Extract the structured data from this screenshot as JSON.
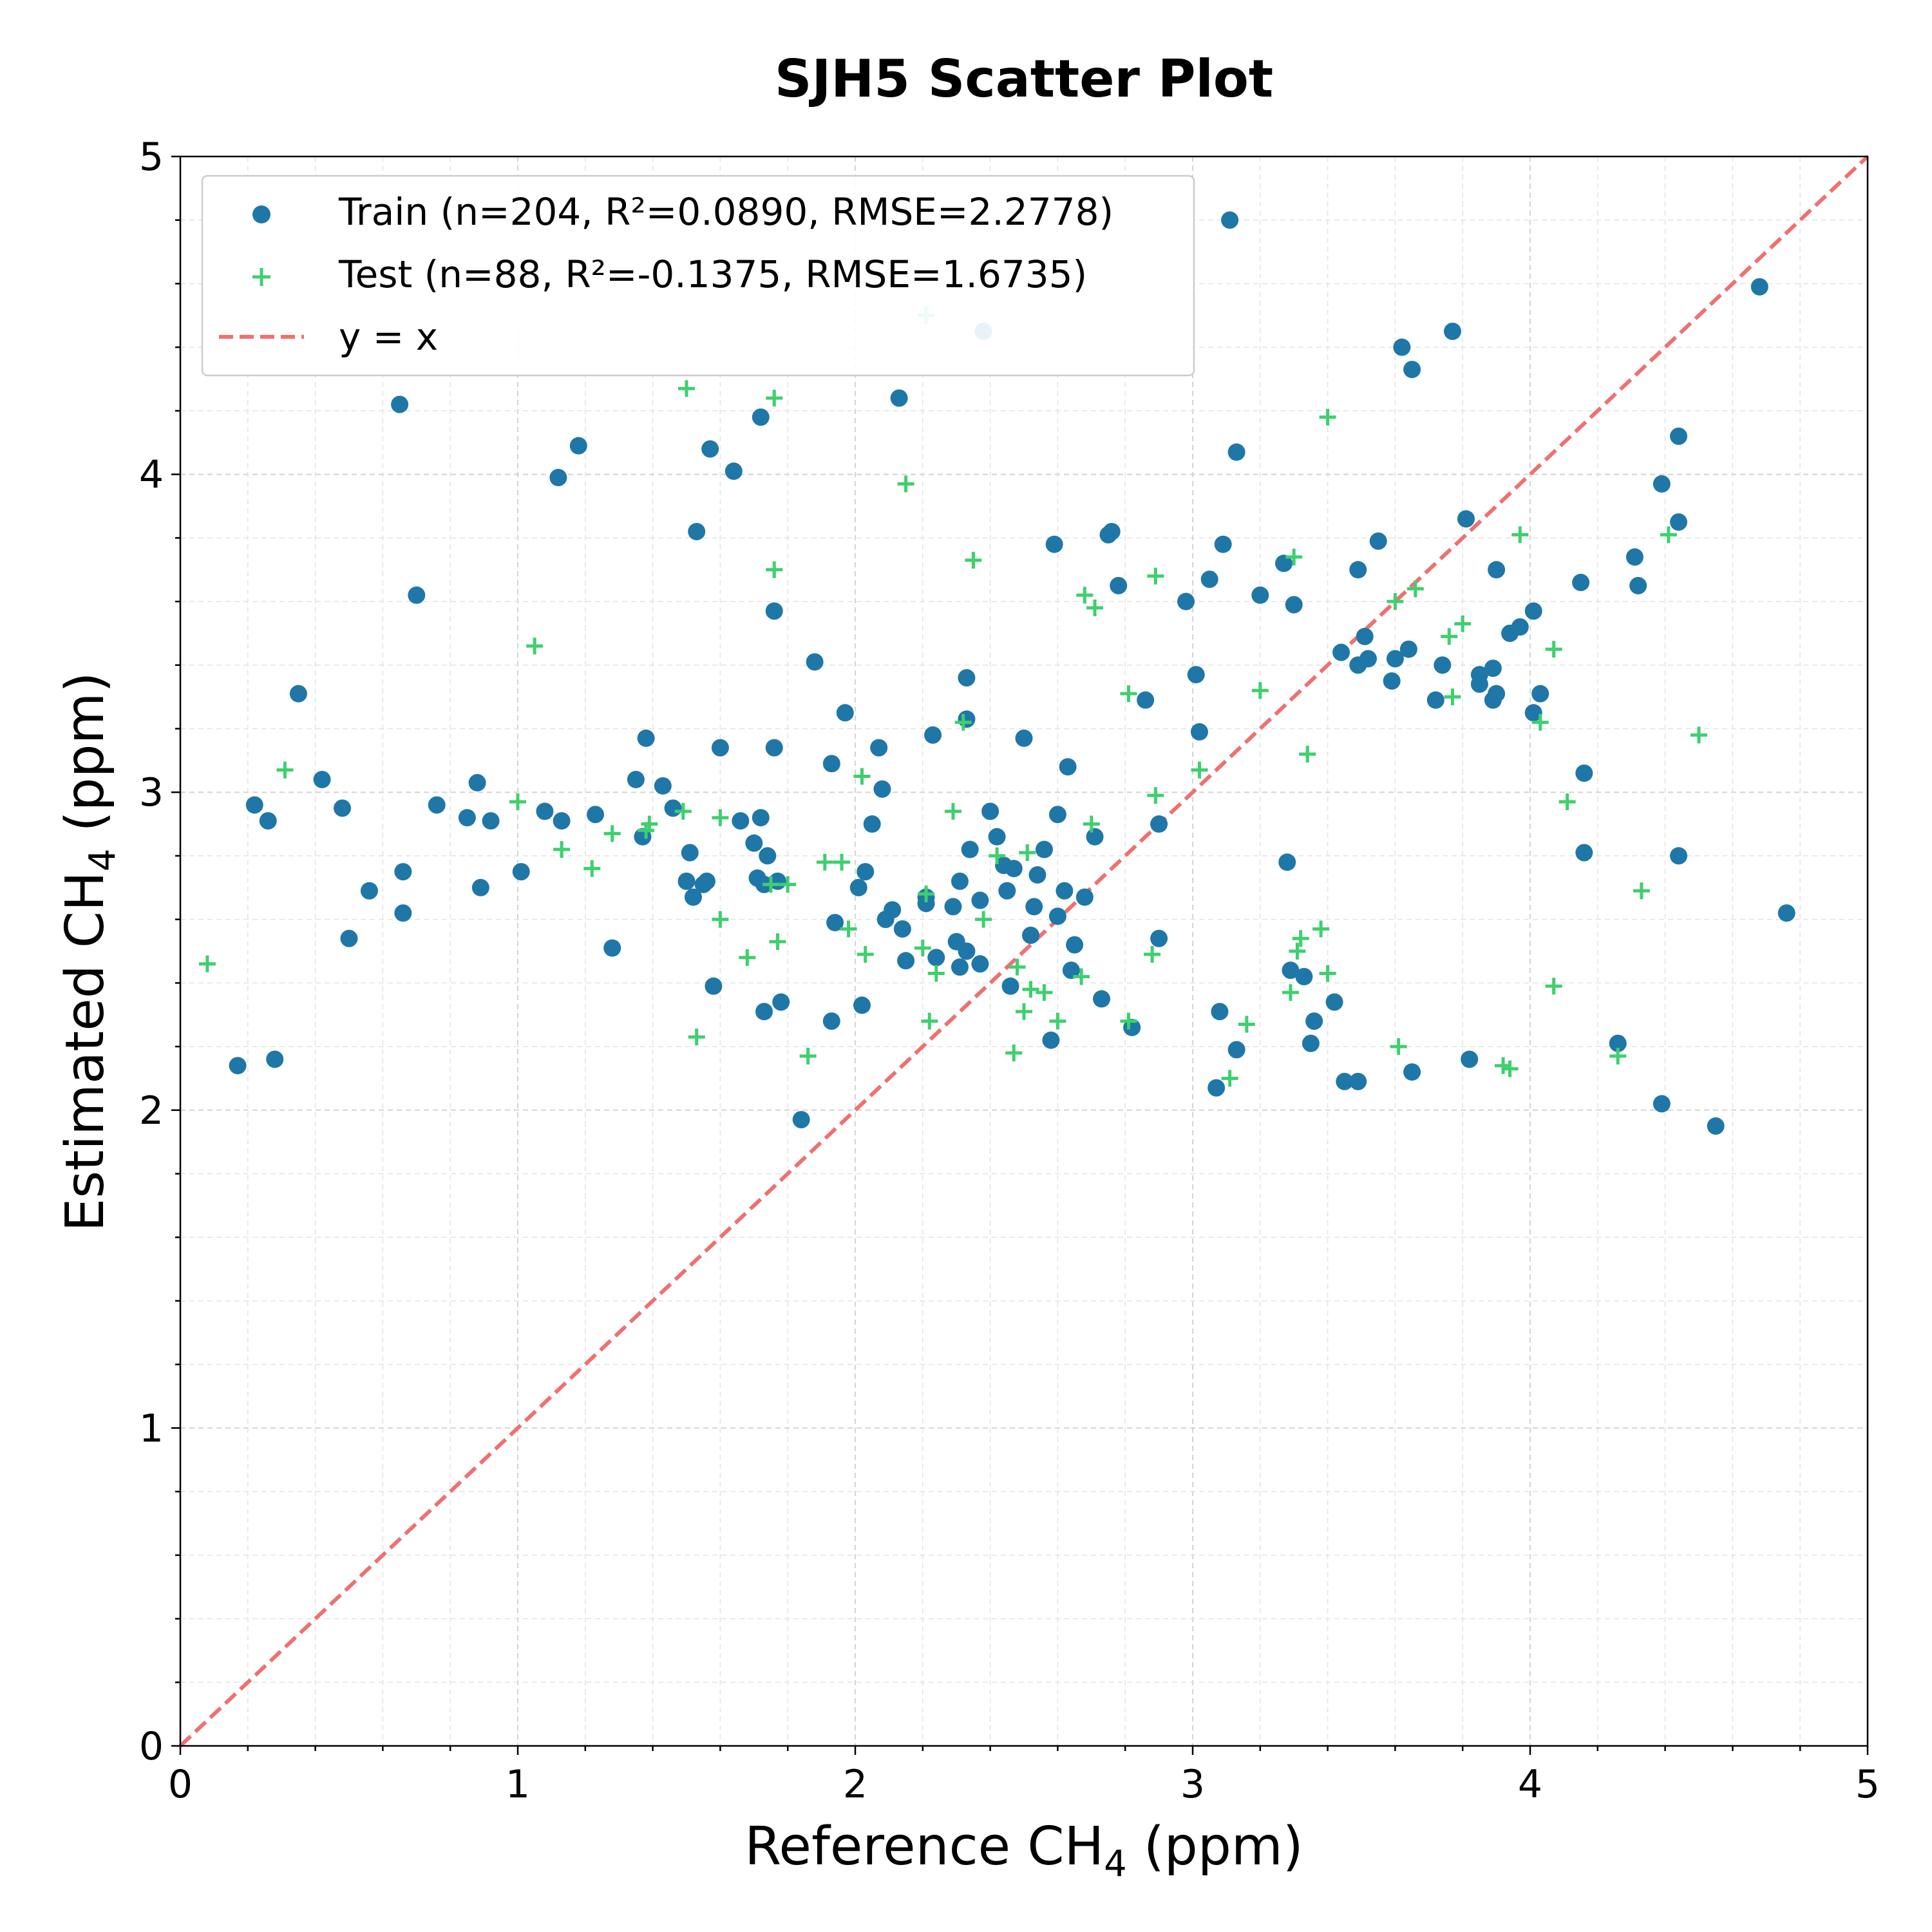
{
  "chart_data": {
    "type": "scatter",
    "title": "SJH5 Scatter Plot",
    "xlabel_main": "Reference CH",
    "xlabel_sub": "4",
    "xlabel_unit": " (ppm)",
    "ylabel_main": "Estimated CH",
    "ylabel_sub": "4",
    "ylabel_unit": " (ppm)",
    "xlim": [
      0,
      5
    ],
    "ylim": [
      0,
      5
    ],
    "xticks": [
      0,
      1,
      2,
      3,
      4,
      5
    ],
    "yticks": [
      0,
      1,
      2,
      3,
      4,
      5
    ],
    "grid": true,
    "legend_position": "top-left",
    "colors": {
      "train": "#1f77a8",
      "test": "#3ecf6e",
      "identity": "#f07070"
    },
    "identity_line": {
      "label": "y = x",
      "x": [
        0,
        5
      ],
      "y": [
        0,
        5
      ]
    },
    "series": [
      {
        "name": "Train (n=204, R²=0.0890, RMSE=2.2778)",
        "marker": "circle",
        "points": [
          [
            0.17,
            2.14
          ],
          [
            0.22,
            2.96
          ],
          [
            0.26,
            2.91
          ],
          [
            0.28,
            2.16
          ],
          [
            0.35,
            3.31
          ],
          [
            0.42,
            3.04
          ],
          [
            0.48,
            2.95
          ],
          [
            0.5,
            2.54
          ],
          [
            0.56,
            2.69
          ],
          [
            0.65,
            4.22
          ],
          [
            0.66,
            2.75
          ],
          [
            0.66,
            2.62
          ],
          [
            0.7,
            3.62
          ],
          [
            0.76,
            2.96
          ],
          [
            0.85,
            2.92
          ],
          [
            0.88,
            3.03
          ],
          [
            0.89,
            2.7
          ],
          [
            0.92,
            2.91
          ],
          [
            1.01,
            2.75
          ],
          [
            1.08,
            2.94
          ],
          [
            1.12,
            3.99
          ],
          [
            1.13,
            2.91
          ],
          [
            1.18,
            4.09
          ],
          [
            1.23,
            2.93
          ],
          [
            1.28,
            2.51
          ],
          [
            1.35,
            3.04
          ],
          [
            1.37,
            2.86
          ],
          [
            1.38,
            3.17
          ],
          [
            1.43,
            3.02
          ],
          [
            1.46,
            2.95
          ],
          [
            1.5,
            2.72
          ],
          [
            1.51,
            2.81
          ],
          [
            1.52,
            2.67
          ],
          [
            1.53,
            3.82
          ],
          [
            1.55,
            2.71
          ],
          [
            1.56,
            2.72
          ],
          [
            1.57,
            4.08
          ],
          [
            1.58,
            2.39
          ],
          [
            1.6,
            3.14
          ],
          [
            1.64,
            4.01
          ],
          [
            1.66,
            2.91
          ],
          [
            1.7,
            2.84
          ],
          [
            1.71,
            2.73
          ],
          [
            1.72,
            4.18
          ],
          [
            1.72,
            2.92
          ],
          [
            1.73,
            2.31
          ],
          [
            1.73,
            2.71
          ],
          [
            1.74,
            2.8
          ],
          [
            1.76,
            3.57
          ],
          [
            1.76,
            3.14
          ],
          [
            1.77,
            2.72
          ],
          [
            1.78,
            2.34
          ],
          [
            1.84,
            1.97
          ],
          [
            1.88,
            3.41
          ],
          [
            1.93,
            3.09
          ],
          [
            1.93,
            2.28
          ],
          [
            1.94,
            2.59
          ],
          [
            1.97,
            3.25
          ],
          [
            2.01,
            2.7
          ],
          [
            2.02,
            2.33
          ],
          [
            2.03,
            2.75
          ],
          [
            2.05,
            2.9
          ],
          [
            2.07,
            3.14
          ],
          [
            2.08,
            3.01
          ],
          [
            2.09,
            2.6
          ],
          [
            2.11,
            2.63
          ],
          [
            2.13,
            4.24
          ],
          [
            2.14,
            2.57
          ],
          [
            2.15,
            2.47
          ],
          [
            2.21,
            2.67
          ],
          [
            2.21,
            2.65
          ],
          [
            2.23,
            3.18
          ],
          [
            2.24,
            2.48
          ],
          [
            2.29,
            2.64
          ],
          [
            2.3,
            2.53
          ],
          [
            2.31,
            2.45
          ],
          [
            2.31,
            2.72
          ],
          [
            2.33,
            2.5
          ],
          [
            2.33,
            3.36
          ],
          [
            2.33,
            3.23
          ],
          [
            2.34,
            2.82
          ],
          [
            2.37,
            2.46
          ],
          [
            2.37,
            2.66
          ],
          [
            2.38,
            4.45
          ],
          [
            2.4,
            2.94
          ],
          [
            2.42,
            2.86
          ],
          [
            2.44,
            2.77
          ],
          [
            2.45,
            2.69
          ],
          [
            2.46,
            2.39
          ],
          [
            2.47,
            2.76
          ],
          [
            2.5,
            3.17
          ],
          [
            2.52,
            2.55
          ],
          [
            2.53,
            2.64
          ],
          [
            2.54,
            2.74
          ],
          [
            2.56,
            2.82
          ],
          [
            2.58,
            2.22
          ],
          [
            2.59,
            3.78
          ],
          [
            2.6,
            2.61
          ],
          [
            2.6,
            2.93
          ],
          [
            2.62,
            2.69
          ],
          [
            2.63,
            3.08
          ],
          [
            2.64,
            2.44
          ],
          [
            2.65,
            2.52
          ],
          [
            2.68,
            2.67
          ],
          [
            2.71,
            2.86
          ],
          [
            2.73,
            2.35
          ],
          [
            2.75,
            3.81
          ],
          [
            2.76,
            3.82
          ],
          [
            2.78,
            3.65
          ],
          [
            2.82,
            2.26
          ],
          [
            2.86,
            3.29
          ],
          [
            2.9,
            2.9
          ],
          [
            2.9,
            2.54
          ],
          [
            2.98,
            3.6
          ],
          [
            3.01,
            3.37
          ],
          [
            3.02,
            3.19
          ],
          [
            3.05,
            3.67
          ],
          [
            3.07,
            2.07
          ],
          [
            3.08,
            2.31
          ],
          [
            3.09,
            3.78
          ],
          [
            3.11,
            4.8
          ],
          [
            3.13,
            4.07
          ],
          [
            3.13,
            2.19
          ],
          [
            3.2,
            3.62
          ],
          [
            3.27,
            3.72
          ],
          [
            3.28,
            2.78
          ],
          [
            3.29,
            2.44
          ],
          [
            3.3,
            3.59
          ],
          [
            3.33,
            2.42
          ],
          [
            3.35,
            2.21
          ],
          [
            3.36,
            2.28
          ],
          [
            3.42,
            2.34
          ],
          [
            3.44,
            3.44
          ],
          [
            3.45,
            2.09
          ],
          [
            3.49,
            2.09
          ],
          [
            3.49,
            3.7
          ],
          [
            3.49,
            3.4
          ],
          [
            3.51,
            3.49
          ],
          [
            3.52,
            3.42
          ],
          [
            3.55,
            3.79
          ],
          [
            3.59,
            3.35
          ],
          [
            3.6,
            3.42
          ],
          [
            3.62,
            4.4
          ],
          [
            3.64,
            3.45
          ],
          [
            3.65,
            4.33
          ],
          [
            3.65,
            2.12
          ],
          [
            3.72,
            3.29
          ],
          [
            3.74,
            3.4
          ],
          [
            3.77,
            4.45
          ],
          [
            3.81,
            3.86
          ],
          [
            3.82,
            2.16
          ],
          [
            3.85,
            3.37
          ],
          [
            3.85,
            3.34
          ],
          [
            3.89,
            3.39
          ],
          [
            3.89,
            3.29
          ],
          [
            3.9,
            3.31
          ],
          [
            3.9,
            3.7
          ],
          [
            3.94,
            3.5
          ],
          [
            3.97,
            3.52
          ],
          [
            4.01,
            3.57
          ],
          [
            4.01,
            3.25
          ],
          [
            4.03,
            3.31
          ],
          [
            4.15,
            3.66
          ],
          [
            4.16,
            3.06
          ],
          [
            4.16,
            2.81
          ],
          [
            4.26,
            2.21
          ],
          [
            4.31,
            3.74
          ],
          [
            4.32,
            3.65
          ],
          [
            4.39,
            3.97
          ],
          [
            4.39,
            2.02
          ],
          [
            4.44,
            4.12
          ],
          [
            4.44,
            3.85
          ],
          [
            4.44,
            2.8
          ],
          [
            4.55,
            1.95
          ],
          [
            4.68,
            4.59
          ],
          [
            4.76,
            2.62
          ]
        ]
      },
      {
        "name": "Test (n=88, R²=-0.1375, RMSE=1.6735)",
        "marker": "plus",
        "points": [
          [
            0.08,
            2.46
          ],
          [
            0.31,
            3.07
          ],
          [
            1.0,
            2.97
          ],
          [
            1.05,
            3.46
          ],
          [
            1.13,
            2.82
          ],
          [
            1.22,
            2.76
          ],
          [
            1.28,
            2.87
          ],
          [
            1.38,
            2.88
          ],
          [
            1.39,
            2.9
          ],
          [
            1.49,
            2.94
          ],
          [
            1.5,
            4.27
          ],
          [
            1.53,
            2.23
          ],
          [
            1.6,
            2.92
          ],
          [
            1.6,
            2.6
          ],
          [
            1.68,
            2.48
          ],
          [
            1.75,
            2.71
          ],
          [
            1.76,
            4.24
          ],
          [
            1.76,
            3.7
          ],
          [
            1.77,
            2.53
          ],
          [
            1.8,
            2.71
          ],
          [
            1.86,
            2.17
          ],
          [
            1.91,
            2.78
          ],
          [
            1.96,
            2.78
          ],
          [
            1.98,
            2.57
          ],
          [
            2.02,
            3.05
          ],
          [
            2.03,
            2.49
          ],
          [
            2.15,
            3.97
          ],
          [
            2.2,
            2.51
          ],
          [
            2.21,
            4.5
          ],
          [
            2.21,
            2.68
          ],
          [
            2.22,
            2.28
          ],
          [
            2.24,
            2.43
          ],
          [
            2.29,
            2.94
          ],
          [
            2.32,
            3.22
          ],
          [
            2.35,
            3.73
          ],
          [
            2.38,
            2.6
          ],
          [
            2.42,
            2.8
          ],
          [
            2.47,
            2.18
          ],
          [
            2.48,
            2.45
          ],
          [
            2.5,
            2.31
          ],
          [
            2.51,
            2.81
          ],
          [
            2.52,
            2.38
          ],
          [
            2.56,
            2.37
          ],
          [
            2.6,
            2.28
          ],
          [
            2.67,
            2.42
          ],
          [
            2.68,
            3.62
          ],
          [
            2.7,
            2.9
          ],
          [
            2.71,
            3.58
          ],
          [
            2.81,
            3.31
          ],
          [
            2.81,
            2.28
          ],
          [
            2.88,
            2.49
          ],
          [
            2.89,
            3.68
          ],
          [
            2.89,
            2.99
          ],
          [
            3.02,
            3.07
          ],
          [
            3.11,
            2.1
          ],
          [
            3.16,
            2.27
          ],
          [
            3.2,
            3.32
          ],
          [
            3.29,
            2.37
          ],
          [
            3.3,
            3.74
          ],
          [
            3.31,
            2.5
          ],
          [
            3.32,
            2.54
          ],
          [
            3.34,
            3.12
          ],
          [
            3.38,
            2.57
          ],
          [
            3.4,
            4.18
          ],
          [
            3.4,
            2.43
          ],
          [
            3.6,
            3.6
          ],
          [
            3.61,
            2.2
          ],
          [
            3.66,
            3.64
          ],
          [
            3.76,
            3.49
          ],
          [
            3.77,
            3.3
          ],
          [
            3.8,
            3.53
          ],
          [
            3.92,
            2.14
          ],
          [
            3.94,
            2.13
          ],
          [
            3.97,
            3.81
          ],
          [
            4.03,
            3.22
          ],
          [
            4.07,
            3.45
          ],
          [
            4.07,
            2.39
          ],
          [
            4.11,
            2.97
          ],
          [
            4.26,
            2.17
          ],
          [
            4.33,
            2.69
          ],
          [
            4.41,
            3.81
          ],
          [
            4.5,
            3.18
          ]
        ]
      }
    ]
  }
}
